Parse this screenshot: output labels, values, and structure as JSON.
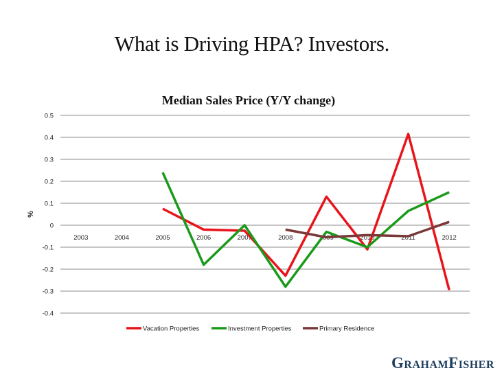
{
  "slide": {
    "title": "What is Driving HPA? Investors.",
    "brand": {
      "first": "Graham",
      "second": "Fisher"
    }
  },
  "chart_data": {
    "type": "line",
    "title": "Median Sales Price (Y/Y change)",
    "xlabel": "",
    "ylabel": "%",
    "categories": [
      "2003",
      "2004",
      "2005",
      "2006",
      "2007",
      "2008",
      "2009",
      "2010",
      "2011",
      "2012"
    ],
    "ylim": [
      -0.4,
      0.5
    ],
    "yticks": [
      0.5,
      0.4,
      0.3,
      0.2,
      0.1,
      0,
      -0.1,
      -0.2,
      -0.3,
      -0.4
    ],
    "grid": true,
    "legend_position": "bottom",
    "series": [
      {
        "name": "Vacation Properties",
        "color": "#e8141b",
        "values": [
          null,
          null,
          0.075,
          -0.02,
          -0.025,
          -0.23,
          0.13,
          -0.11,
          0.415,
          -0.295
        ]
      },
      {
        "name": "Investment Properties",
        "color": "#1a9a1a",
        "values": [
          null,
          null,
          0.24,
          -0.18,
          0.0,
          -0.28,
          -0.03,
          -0.1,
          0.065,
          0.15
        ]
      },
      {
        "name": "Primary Residence",
        "color": "#7a3838",
        "values": [
          null,
          null,
          null,
          null,
          null,
          -0.02,
          -0.055,
          -0.045,
          -0.05,
          0.015
        ]
      }
    ]
  }
}
